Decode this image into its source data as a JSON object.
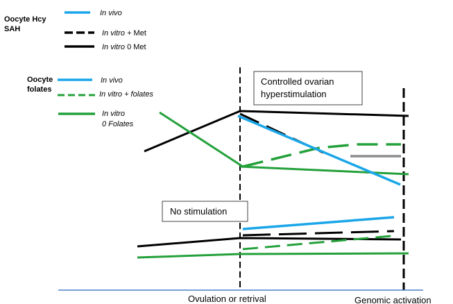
{
  "colors": {
    "in_vivo": "#1aa6e8",
    "in_vitro_supplemented": "#23a03a",
    "in_vitro_zero": "#000000",
    "grey_segment": "#8c8c8c",
    "axis": "#4a7ec8",
    "box_border": "#404040"
  },
  "legend_hcy": {
    "title_line1": "Oocyte Hcy",
    "title_line2": "SAH",
    "entries": [
      {
        "id": "in_vivo",
        "italic": "In vivo",
        "plain": "",
        "color": "#1aa6e8",
        "dash": "solid"
      },
      {
        "id": "in_vitro_met",
        "italic": "In vitro",
        "plain": " + Met",
        "color": "#000000",
        "dash": "dashed"
      },
      {
        "id": "in_vitro_0met",
        "italic": "In vitro",
        "plain": "  0 Met",
        "color": "#000000",
        "dash": "solid"
      }
    ]
  },
  "legend_folates": {
    "title_line1": "Oocyte",
    "title_line2": "folates",
    "entries": [
      {
        "id": "in_vivo",
        "italic": "In vivo",
        "plain": "",
        "color": "#1aa6e8",
        "dash": "solid"
      },
      {
        "id": "in_vitro_folates",
        "italic": "In vitro + folates",
        "plain": "",
        "color": "#23a03a",
        "dash": "dashed"
      },
      {
        "id": "in_vitro_0folates",
        "italic_line1": "In vitro",
        "italic_line2": "0 Folates",
        "color": "#23a03a",
        "dash": "solid"
      }
    ]
  },
  "boxes": {
    "controlled_line1": "Controlled ovarian",
    "controlled_line2": "hyperstimulation",
    "no_stim": "No stimulation"
  },
  "axis_labels": {
    "ovulation": "Ovulation or retrival",
    "genomic": "Genomic activation"
  }
}
